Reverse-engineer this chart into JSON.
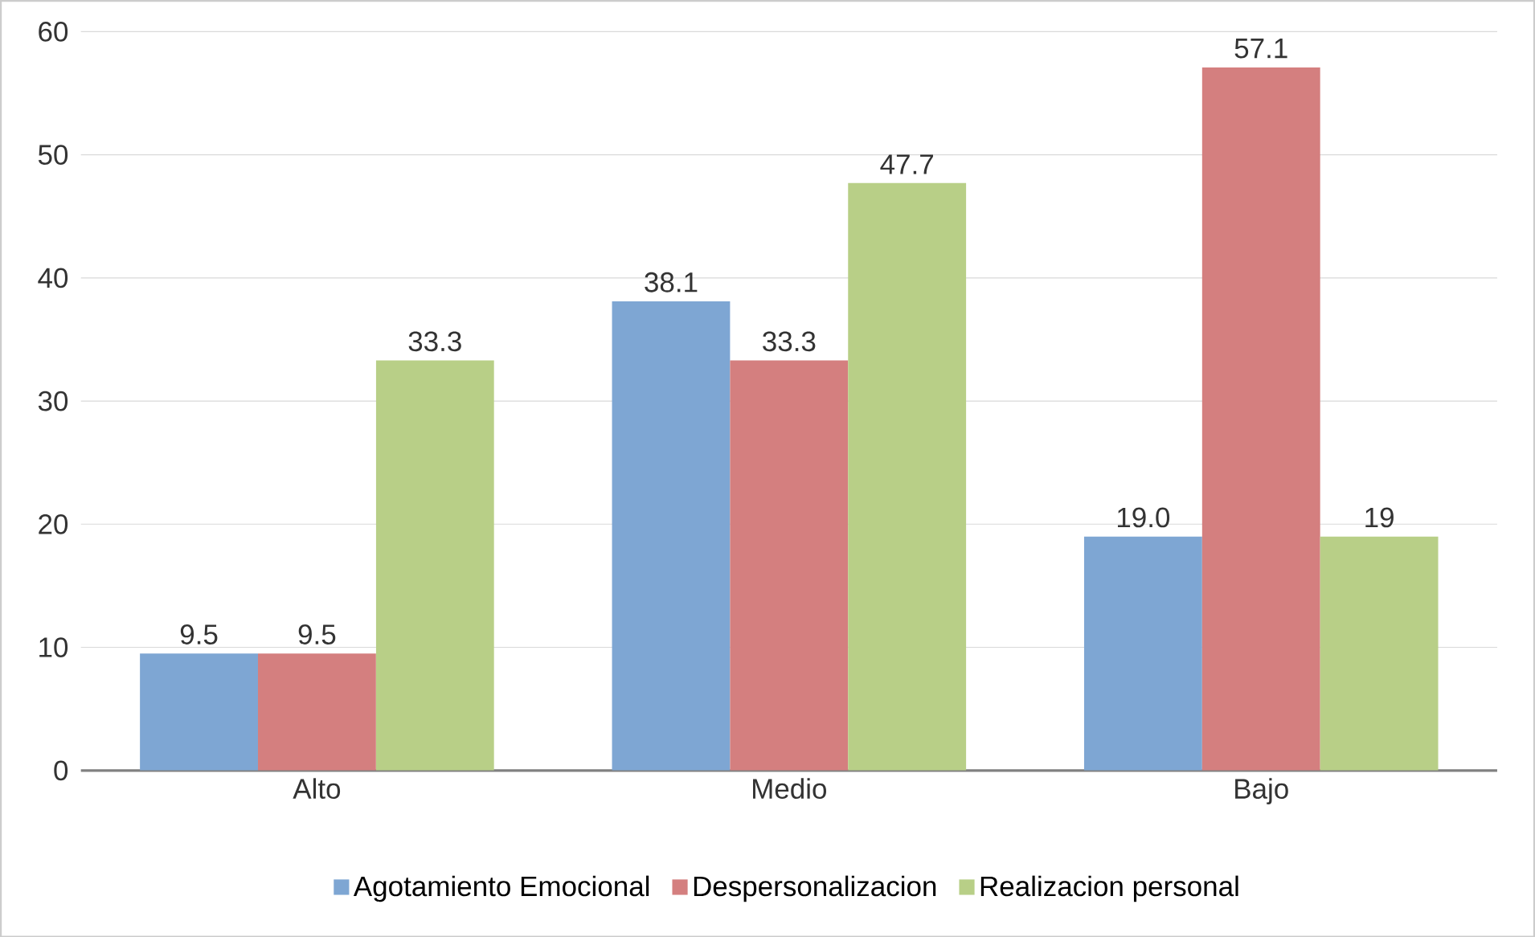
{
  "chart_data": {
    "type": "bar",
    "categories": [
      "Alto",
      "Medio",
      "Bajo"
    ],
    "series": [
      {
        "name": "Agotamiento Emocional",
        "color": "#7ea6d3",
        "values": [
          9.5,
          38.1,
          19.0
        ],
        "value_labels": [
          "9.5",
          "38.1",
          "19.0"
        ]
      },
      {
        "name": "Despersonalizacion",
        "color": "#d47f7f",
        "values": [
          9.5,
          33.3,
          57.1
        ],
        "value_labels": [
          "9.5",
          "33.3",
          "57.1"
        ]
      },
      {
        "name": "Realizacion personal",
        "color": "#b8cf87",
        "values": [
          33.3,
          47.7,
          19
        ],
        "value_labels": [
          "33.3",
          "47.7",
          "19"
        ]
      }
    ],
    "ylim": [
      0,
      60
    ],
    "yticks": [
      0,
      10,
      20,
      30,
      40,
      50,
      60
    ],
    "grid": "y",
    "legend": "bottom"
  }
}
